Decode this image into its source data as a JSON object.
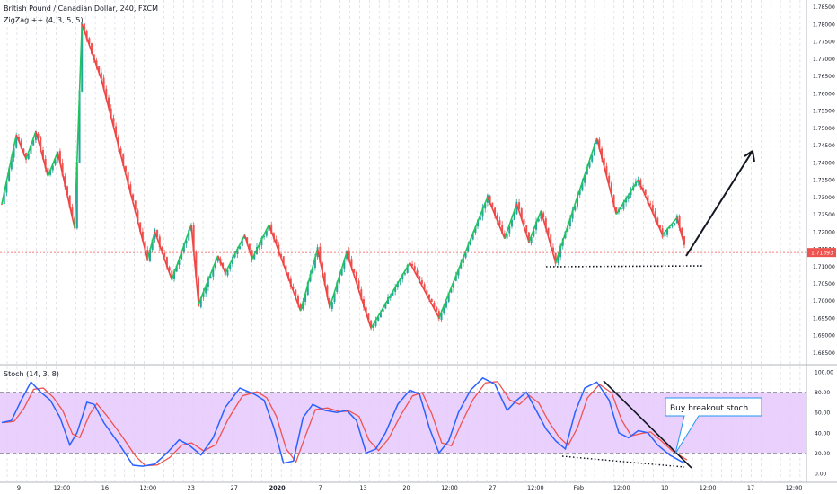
{
  "header": {
    "symbol_line": "British Pound / Canadian Dollar, 240, FXCM",
    "indicator_line": "ZigZag ++ (4, 3, 5, 5)"
  },
  "stoch_panel": {
    "title": "Stoch (14, 3, 8)",
    "annotation": "Buy breakout stoch"
  },
  "colors": {
    "bull": "#26a69a",
    "bear": "#ef5350",
    "zigzag_up": "#22c55e",
    "zigzag_down": "#ef4444",
    "stoch_k": "#2962ff",
    "stoch_d": "#ef5350",
    "stoch_band": "#e6c8fb",
    "price_line": "#ef5350"
  },
  "chart_data": [
    {
      "type": "line",
      "name": "price",
      "y_axis_ticks": [
        "1.78500",
        "1.78000",
        "1.77500",
        "1.77000",
        "1.76500",
        "1.76000",
        "1.75500",
        "1.75000",
        "1.74500",
        "1.74000",
        "1.73500",
        "1.73000",
        "1.72500",
        "1.72000",
        "1.71500",
        "1.71000",
        "1.70500",
        "1.70000",
        "1.69500",
        "1.69000",
        "1.68500"
      ],
      "ylim": [
        1.682,
        1.787
      ],
      "current_price_label": "1.71393",
      "x_axis_ticks": [
        "9",
        "12:00",
        "16",
        "12:00",
        "23",
        "27",
        "2020",
        "7",
        "13",
        "20",
        "12:00",
        "27",
        "12:00",
        "Feb",
        "12:00",
        "10",
        "12:00",
        "17",
        "12:00"
      ],
      "zigzag_points": [
        {
          "x": 0,
          "y": 1.728
        },
        {
          "x": 6,
          "y": 1.748
        },
        {
          "x": 10,
          "y": 1.741
        },
        {
          "x": 14,
          "y": 1.749
        },
        {
          "x": 19,
          "y": 1.736
        },
        {
          "x": 23,
          "y": 1.743
        },
        {
          "x": 30,
          "y": 1.721
        },
        {
          "x": 33,
          "y": 1.78
        },
        {
          "x": 41,
          "y": 1.764
        },
        {
          "x": 60,
          "y": 1.712
        },
        {
          "x": 63,
          "y": 1.72
        },
        {
          "x": 70,
          "y": 1.706
        },
        {
          "x": 78,
          "y": 1.722
        },
        {
          "x": 81,
          "y": 1.699
        },
        {
          "x": 89,
          "y": 1.713
        },
        {
          "x": 92,
          "y": 1.708
        },
        {
          "x": 100,
          "y": 1.719
        },
        {
          "x": 103,
          "y": 1.712
        },
        {
          "x": 110,
          "y": 1.722
        },
        {
          "x": 123,
          "y": 1.697
        },
        {
          "x": 130,
          "y": 1.715
        },
        {
          "x": 135,
          "y": 1.698
        },
        {
          "x": 142,
          "y": 1.714
        },
        {
          "x": 152,
          "y": 1.692
        },
        {
          "x": 168,
          "y": 1.711
        },
        {
          "x": 180,
          "y": 1.695
        },
        {
          "x": 200,
          "y": 1.73
        },
        {
          "x": 207,
          "y": 1.718
        },
        {
          "x": 212,
          "y": 1.728
        },
        {
          "x": 217,
          "y": 1.717
        },
        {
          "x": 222,
          "y": 1.726
        },
        {
          "x": 228,
          "y": 1.711
        },
        {
          "x": 245,
          "y": 1.747
        },
        {
          "x": 253,
          "y": 1.725
        },
        {
          "x": 262,
          "y": 1.735
        },
        {
          "x": 272,
          "y": 1.719
        },
        {
          "x": 278,
          "y": 1.724
        },
        {
          "x": 281,
          "y": 1.716
        }
      ],
      "candle_count": 282,
      "current_price": 1.71393
    },
    {
      "type": "line",
      "name": "stochastic",
      "ylim": [
        0,
        100
      ],
      "y_axis_ticks": [
        "100.00",
        "80.00",
        "60.00",
        "40.00",
        "20.00",
        "0.00"
      ],
      "overbought": 80,
      "oversold": 20,
      "k_points": [
        {
          "x": 0,
          "y": 50
        },
        {
          "x": 4,
          "y": 52
        },
        {
          "x": 8,
          "y": 72
        },
        {
          "x": 12,
          "y": 90
        },
        {
          "x": 16,
          "y": 80
        },
        {
          "x": 20,
          "y": 72
        },
        {
          "x": 24,
          "y": 55
        },
        {
          "x": 28,
          "y": 28
        },
        {
          "x": 31,
          "y": 40
        },
        {
          "x": 35,
          "y": 70
        },
        {
          "x": 38,
          "y": 68
        },
        {
          "x": 42,
          "y": 50
        },
        {
          "x": 48,
          "y": 30
        },
        {
          "x": 54,
          "y": 8
        },
        {
          "x": 58,
          "y": 7
        },
        {
          "x": 63,
          "y": 9
        },
        {
          "x": 68,
          "y": 20
        },
        {
          "x": 73,
          "y": 33
        },
        {
          "x": 77,
          "y": 28
        },
        {
          "x": 82,
          "y": 18
        },
        {
          "x": 87,
          "y": 35
        },
        {
          "x": 92,
          "y": 65
        },
        {
          "x": 98,
          "y": 84
        },
        {
          "x": 104,
          "y": 78
        },
        {
          "x": 108,
          "y": 72
        },
        {
          "x": 112,
          "y": 45
        },
        {
          "x": 116,
          "y": 10
        },
        {
          "x": 120,
          "y": 12
        },
        {
          "x": 124,
          "y": 55
        },
        {
          "x": 128,
          "y": 68
        },
        {
          "x": 133,
          "y": 62
        },
        {
          "x": 138,
          "y": 60
        },
        {
          "x": 142,
          "y": 62
        },
        {
          "x": 146,
          "y": 52
        },
        {
          "x": 150,
          "y": 20
        },
        {
          "x": 154,
          "y": 24
        },
        {
          "x": 158,
          "y": 40
        },
        {
          "x": 163,
          "y": 68
        },
        {
          "x": 168,
          "y": 82
        },
        {
          "x": 172,
          "y": 78
        },
        {
          "x": 176,
          "y": 45
        },
        {
          "x": 180,
          "y": 20
        },
        {
          "x": 184,
          "y": 32
        },
        {
          "x": 188,
          "y": 60
        },
        {
          "x": 193,
          "y": 82
        },
        {
          "x": 198,
          "y": 94
        },
        {
          "x": 203,
          "y": 88
        },
        {
          "x": 208,
          "y": 62
        },
        {
          "x": 212,
          "y": 72
        },
        {
          "x": 216,
          "y": 80
        },
        {
          "x": 220,
          "y": 62
        },
        {
          "x": 224,
          "y": 44
        },
        {
          "x": 228,
          "y": 32
        },
        {
          "x": 232,
          "y": 24
        },
        {
          "x": 236,
          "y": 60
        },
        {
          "x": 240,
          "y": 84
        },
        {
          "x": 245,
          "y": 90
        },
        {
          "x": 250,
          "y": 72
        },
        {
          "x": 254,
          "y": 40
        },
        {
          "x": 258,
          "y": 35
        },
        {
          "x": 262,
          "y": 42
        },
        {
          "x": 266,
          "y": 40
        },
        {
          "x": 270,
          "y": 28
        },
        {
          "x": 275,
          "y": 18
        },
        {
          "x": 281,
          "y": 10
        }
      ]
    }
  ]
}
